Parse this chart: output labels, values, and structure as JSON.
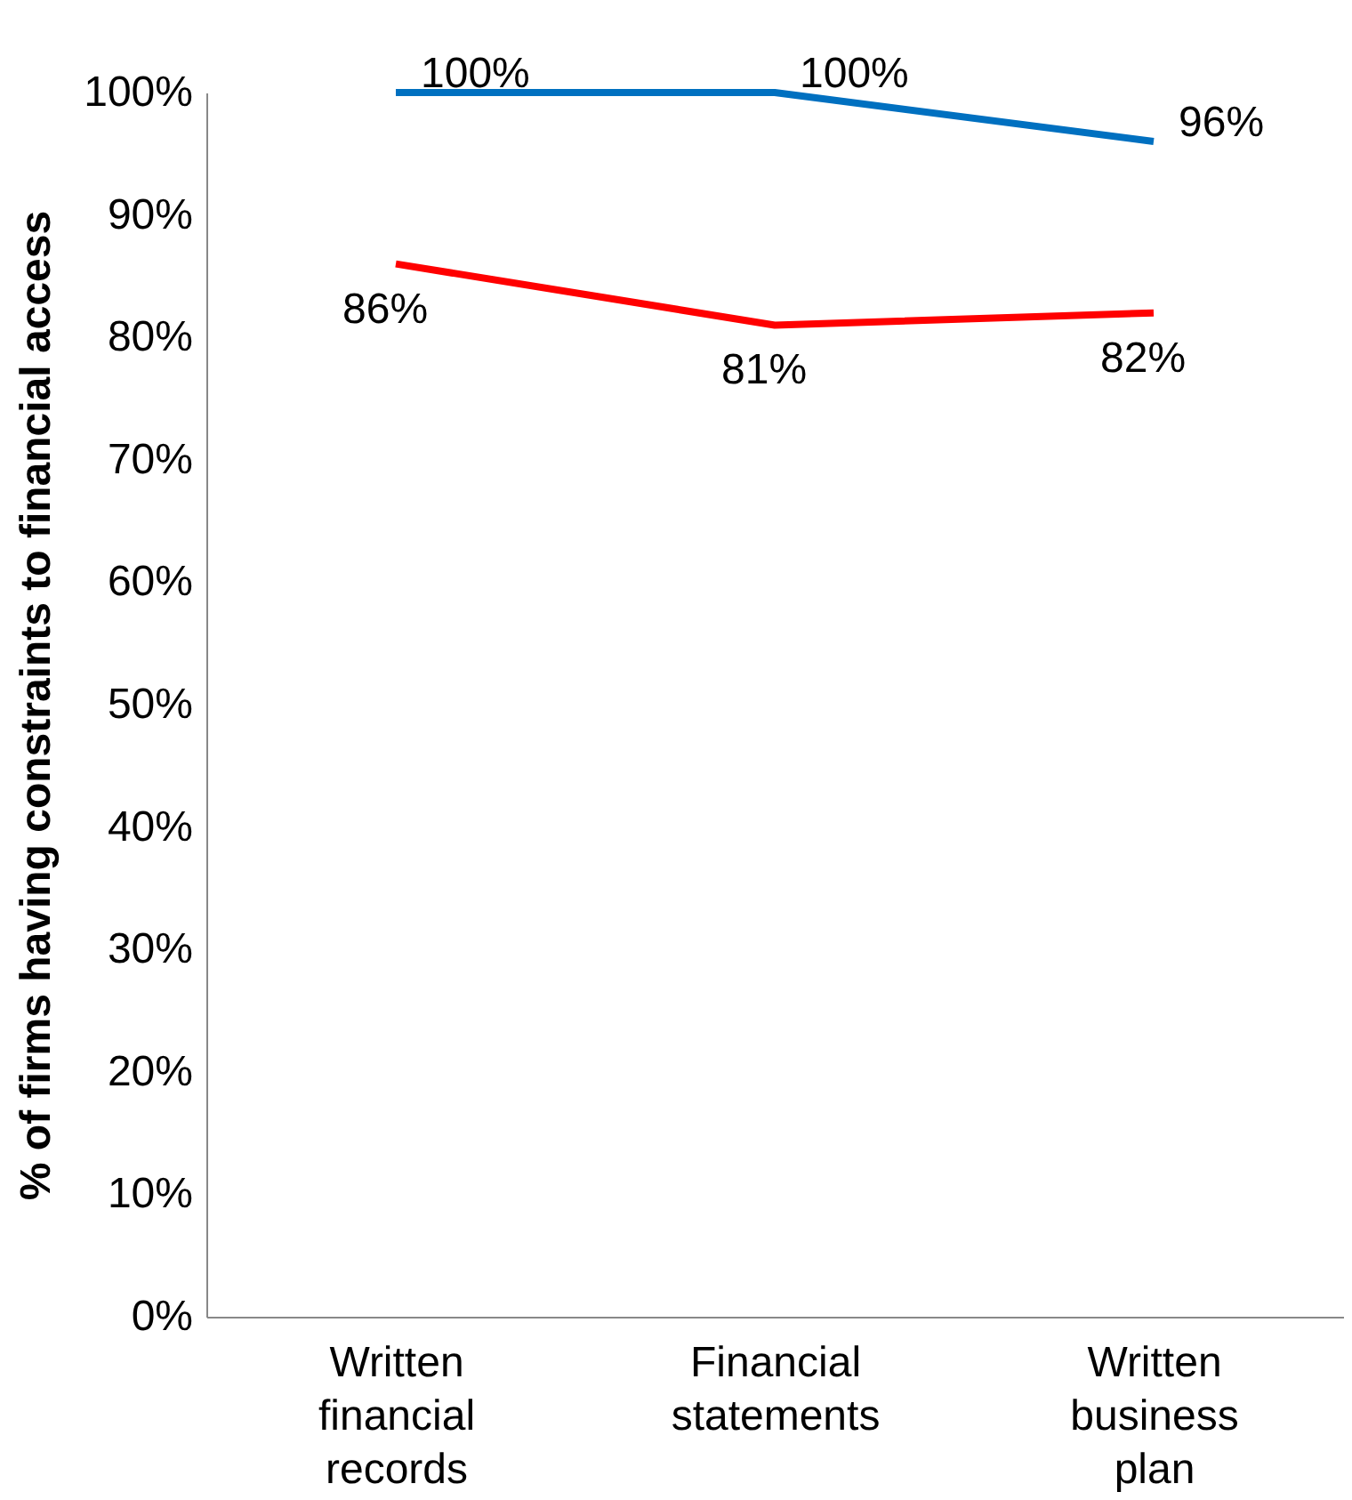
{
  "chart_data": {
    "type": "line",
    "ylabel": "% of firms having constraints to  financial access",
    "categories": [
      "Written financial records",
      "Financial statements",
      "Written business plan"
    ],
    "series": [
      {
        "color": "#0070c0",
        "values": [
          100,
          100,
          96
        ],
        "value_labels": [
          "100%",
          "100%",
          "96%"
        ]
      },
      {
        "color": "#ff0000",
        "values": [
          86,
          81,
          82
        ],
        "value_labels": [
          "86%",
          "81%",
          "82%"
        ]
      }
    ],
    "ylim": [
      0,
      100
    ],
    "yticks": [
      {
        "value": 0,
        "label": "0%"
      },
      {
        "value": 10,
        "label": "10%"
      },
      {
        "value": 20,
        "label": "20%"
      },
      {
        "value": 30,
        "label": "30%"
      },
      {
        "value": 40,
        "label": "40%"
      },
      {
        "value": 50,
        "label": "50%"
      },
      {
        "value": 60,
        "label": "60%"
      },
      {
        "value": 70,
        "label": "70%"
      },
      {
        "value": 80,
        "label": "80%"
      },
      {
        "value": 90,
        "label": "90%"
      },
      {
        "value": 100,
        "label": "100%"
      }
    ],
    "grid": false,
    "marker": "none",
    "line_style": "solid"
  }
}
